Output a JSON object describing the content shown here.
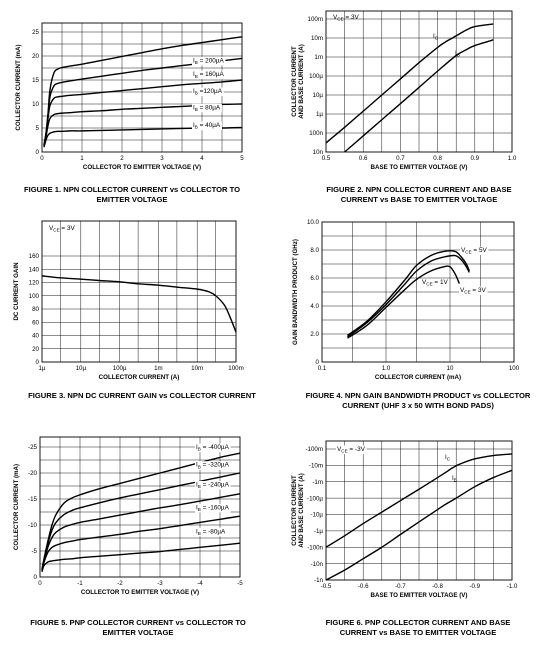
{
  "figures": [
    {
      "id": "fig1",
      "caption": [
        "FIGURE 1.  NPN COLLECTOR CURRENT vs COLLECTOR TO",
        "EMITTER VOLTAGE"
      ],
      "xlabel": "COLLECTOR TO EMITTER VOLTAGE (V)",
      "ylabel": "COLLECTOR CURRENT (mA)",
      "x_ticks": [
        "0",
        "1",
        "2",
        "3",
        "4",
        "5"
      ],
      "y_ticks": [
        "0",
        "5",
        "10",
        "15",
        "20",
        "25"
      ],
      "annotations": [],
      "curve_labels": [
        {
          "main": "I",
          "sub": "B",
          "rest": " = 200µA"
        },
        {
          "main": "I",
          "sub": "B",
          "rest": " = 160µA"
        },
        {
          "main": "I",
          "sub": "B",
          "rest": " =120µA"
        },
        {
          "main": "I",
          "sub": "B",
          "rest": " = 80µA"
        },
        {
          "main": "I",
          "sub": "B",
          "rest": " = 40µA"
        }
      ]
    },
    {
      "id": "fig2",
      "caption": [
        "FIGURE 2.  NPN COLLECTOR CURRENT AND BASE",
        "CURRENT vs BASE TO EMITTER VOLTAGE"
      ],
      "xlabel": "BASE TO EMITTER VOLTAGE (V)",
      "ylabel": [
        "COLLECTOR CURRENT",
        "AND BASE CURRENT (A)"
      ],
      "x_ticks": [
        "0.5",
        "0.6",
        "0.7",
        "0.8",
        "0.9",
        "1.0"
      ],
      "y_ticks": [
        "100m",
        "10m",
        "1m",
        "100µ",
        "10µ",
        "1µ",
        "100n",
        "10n"
      ],
      "annotations": [
        {
          "main": "V",
          "sub": "CE",
          "rest": " = 3V"
        }
      ],
      "curve_labels": [
        {
          "main": "I",
          "sub": "C",
          "rest": ""
        },
        {
          "main": "I",
          "sub": "B",
          "rest": ""
        }
      ]
    },
    {
      "id": "fig3",
      "caption": [
        "FIGURE 3.  NPN DC CURRENT GAIN vs COLLECTOR CURRENT"
      ],
      "xlabel": "COLLECTOR CURRENT (A)",
      "ylabel": "DC CURRENT GAIN",
      "x_ticks": [
        "1µ",
        "10µ",
        "100µ",
        "1m",
        "10m",
        "100m"
      ],
      "y_ticks": [
        "0",
        "20",
        "40",
        "60",
        "80",
        "100",
        "120",
        "140",
        "160"
      ],
      "annotations": [
        {
          "main": "V",
          "sub": "CE",
          "rest": " = 3V"
        }
      ],
      "curve_labels": []
    },
    {
      "id": "fig4",
      "caption": [
        "FIGURE 4.  NPN GAIN BANDWIDTH PRODUCT vs COLLECTOR",
        "CURRENT (UHF 3 x 50 WITH BOND PADS)"
      ],
      "xlabel": "COLLECTOR CURRENT (mA)",
      "ylabel": "GAIN BANDWIDTH PRODUCT (GHz)",
      "x_ticks": [
        "0.1",
        "1.0",
        "10",
        "100"
      ],
      "y_ticks": [
        "0",
        "2.0",
        "4.0",
        "6.0",
        "8.0",
        "10.0"
      ],
      "annotations": [],
      "curve_labels": [
        {
          "main": "V",
          "sub": "CE",
          "rest": " = 5V"
        },
        {
          "main": "V",
          "sub": "CE",
          "rest": " = 1V"
        },
        {
          "main": "V",
          "sub": "CE",
          "rest": " = 3V"
        }
      ]
    },
    {
      "id": "fig5",
      "caption": [
        "FIGURE 5.  PNP COLLECTOR CURRENT vs COLLECTOR TO",
        "EMITTER VOLTAGE"
      ],
      "xlabel": "COLLECTOR TO EMITTER VOLTAGE (V)",
      "ylabel": "COLLECTOR CURRENT (mA)",
      "x_ticks": [
        "0",
        "-1",
        "-2",
        "-3",
        "-4",
        "-5"
      ],
      "y_ticks": [
        "0",
        "-5",
        "-10",
        "-15",
        "-20",
        "-25"
      ],
      "annotations": [],
      "curve_labels": [
        {
          "main": "I",
          "sub": "B",
          "rest": " = -400µA"
        },
        {
          "main": "I",
          "sub": "B",
          "rest": " = -320µA"
        },
        {
          "main": "I",
          "sub": "B",
          "rest": " = -240µA"
        },
        {
          "main": "I",
          "sub": "B",
          "rest": " = -160µA"
        },
        {
          "main": "I",
          "sub": "B",
          "rest": " = -80µA"
        }
      ]
    },
    {
      "id": "fig6",
      "caption": [
        "FIGURE 6.  PNP COLLECTOR CURRENT AND BASE",
        "CURRENT vs BASE TO EMITTER VOLTAGE"
      ],
      "xlabel": "BASE TO EMITTER VOLTAGE (V)",
      "ylabel": [
        "COLLECTOR CURRENT",
        "AND BASE CURRENT (A)"
      ],
      "x_ticks": [
        "-0.5",
        "-0.6",
        "-0.7",
        "-0.8",
        "-0.9",
        "-1.0"
      ],
      "y_ticks": [
        "-100m",
        "-10m",
        "-1m",
        "-100µ",
        "-10µ",
        "-1µ",
        "-100n",
        "-10n",
        "-1n"
      ],
      "annotations": [
        {
          "main": "V",
          "sub": "CE",
          "rest": " = -3V"
        }
      ],
      "curve_labels": [
        {
          "main": "I",
          "sub": "C",
          "rest": ""
        },
        {
          "main": "I",
          "sub": "B",
          "rest": ""
        }
      ]
    }
  ],
  "chart_data": [
    {
      "type": "line",
      "title": "",
      "xlabel": "COLLECTOR TO EMITTER VOLTAGE (V)",
      "ylabel": "COLLECTOR CURRENT (mA)",
      "xlim": [
        0,
        5
      ],
      "ylim": [
        0,
        25
      ],
      "grid": true,
      "xscale": "linear",
      "yscale": "linear",
      "series": [
        {
          "name": "IB = 200µA",
          "x": [
            0.05,
            0.1,
            0.15,
            0.2,
            0.3,
            0.4,
            0.5,
            0.7,
            1,
            1.5,
            2,
            2.5,
            3,
            3.5,
            4,
            4.5,
            5
          ],
          "y": [
            1.5,
            4,
            8,
            13,
            16.5,
            17.3,
            17.6,
            17.9,
            18.3,
            19.1,
            19.9,
            20.7,
            21.5,
            22.2,
            22.8,
            23.4,
            24
          ]
        },
        {
          "name": "IB = 160µA",
          "x": [
            0.05,
            0.1,
            0.15,
            0.2,
            0.3,
            0.4,
            0.5,
            0.7,
            1,
            1.5,
            2,
            2.5,
            3,
            3.5,
            4,
            4.5,
            5
          ],
          "y": [
            1.4,
            3.8,
            7.5,
            11.5,
            13.8,
            14.3,
            14.5,
            14.8,
            15.2,
            15.8,
            16.4,
            17,
            17.5,
            18,
            18.5,
            19,
            19.5
          ]
        },
        {
          "name": "IB = 120µA",
          "x": [
            0.05,
            0.1,
            0.15,
            0.2,
            0.3,
            0.4,
            0.5,
            0.7,
            1,
            1.5,
            2,
            2.5,
            3,
            3.5,
            4,
            4.5,
            5
          ],
          "y": [
            1.3,
            3.5,
            7,
            9.7,
            11.2,
            11.5,
            11.6,
            11.8,
            12,
            12.4,
            12.8,
            13.2,
            13.6,
            14,
            14.3,
            14.6,
            15
          ]
        },
        {
          "name": "IB = 80µA",
          "x": [
            0.05,
            0.1,
            0.15,
            0.2,
            0.3,
            0.4,
            0.5,
            0.7,
            1,
            1.5,
            2,
            2.5,
            3,
            3.5,
            4,
            4.5,
            5
          ],
          "y": [
            1.2,
            3.2,
            5.5,
            7,
            7.8,
            8,
            8.1,
            8.2,
            8.4,
            8.6,
            8.9,
            9.1,
            9.3,
            9.5,
            9.7,
            9.9,
            10
          ]
        },
        {
          "name": "IB = 40µA",
          "x": [
            0.05,
            0.1,
            0.15,
            0.2,
            0.3,
            0.4,
            0.5,
            0.7,
            1,
            1.5,
            2,
            2.5,
            3,
            3.5,
            4,
            4.5,
            5
          ],
          "y": [
            1,
            2.5,
            3.5,
            3.9,
            4.2,
            4.3,
            4.3,
            4.4,
            4.4,
            4.5,
            4.6,
            4.7,
            4.8,
            4.9,
            5,
            5,
            5.1
          ]
        }
      ]
    },
    {
      "type": "line",
      "title": "",
      "xlabel": "BASE TO EMITTER VOLTAGE (V)",
      "ylabel": "COLLECTOR CURRENT AND BASE CURRENT (A)",
      "xlim": [
        0.5,
        1.0
      ],
      "ylim": [
        1e-08,
        0.1
      ],
      "grid": true,
      "xscale": "linear",
      "yscale": "log",
      "series": [
        {
          "name": "IC",
          "x": [
            0.5,
            0.55,
            0.6,
            0.65,
            0.7,
            0.75,
            0.8,
            0.82,
            0.84,
            0.86,
            0.88,
            0.9,
            0.95
          ],
          "y": [
            3e-08,
            2e-07,
            1.4e-06,
            1e-05,
            7e-05,
            0.0005,
            0.0032,
            0.006,
            0.01,
            0.017,
            0.028,
            0.04,
            0.055
          ]
        },
        {
          "name": "IB",
          "x": [
            0.55,
            0.6,
            0.65,
            0.7,
            0.75,
            0.8,
            0.85,
            0.88,
            0.9,
            0.95
          ],
          "y": [
            1e-08,
            7e-08,
            5e-07,
            3.5e-06,
            2.5e-05,
            0.00018,
            0.0012,
            0.0026,
            0.004,
            0.008
          ]
        }
      ]
    },
    {
      "type": "line",
      "title": "",
      "xlabel": "COLLECTOR CURRENT (A)",
      "ylabel": "DC CURRENT GAIN",
      "xlim": [
        1e-06,
        0.1
      ],
      "ylim": [
        0,
        180
      ],
      "grid": true,
      "xscale": "log",
      "yscale": "linear",
      "series": [
        {
          "name": "VCE = 3V",
          "x": [
            1e-06,
            3e-06,
            1e-05,
            3e-05,
            0.0001,
            0.0003,
            0.001,
            0.003,
            0.01,
            0.02,
            0.03,
            0.05,
            0.07,
            0.1
          ],
          "y": [
            130,
            127,
            125,
            123,
            121,
            118,
            116,
            113,
            110,
            106,
            100,
            86,
            68,
            45
          ]
        }
      ]
    },
    {
      "type": "line",
      "title": "",
      "xlabel": "COLLECTOR CURRENT (mA)",
      "ylabel": "GAIN BANDWIDTH PRODUCT (GHz)",
      "xlim": [
        0.1,
        100
      ],
      "ylim": [
        0,
        10
      ],
      "grid": true,
      "xscale": "log",
      "yscale": "linear",
      "series": [
        {
          "name": "VCE = 5V",
          "x": [
            0.25,
            0.5,
            1,
            2,
            3,
            5,
            8,
            12,
            15,
            18,
            20
          ],
          "y": [
            1.9,
            2.9,
            4.3,
            5.9,
            6.9,
            7.6,
            7.9,
            7.9,
            7.5,
            7.0,
            6.5
          ]
        },
        {
          "name": "VCE = 3V",
          "x": [
            0.25,
            0.5,
            1,
            2,
            3,
            5,
            8,
            12,
            15,
            18,
            20
          ],
          "y": [
            1.8,
            2.8,
            4.1,
            5.6,
            6.5,
            7.2,
            7.5,
            7.6,
            7.3,
            6.8,
            6.4
          ]
        },
        {
          "name": "VCE = 1V",
          "x": [
            0.25,
            0.5,
            1,
            2,
            3,
            5,
            8,
            10,
            12,
            14
          ],
          "y": [
            1.7,
            2.6,
            3.9,
            5.2,
            5.9,
            6.5,
            6.8,
            6.8,
            6.3,
            5.6
          ]
        }
      ]
    },
    {
      "type": "line",
      "title": "",
      "xlabel": "COLLECTOR TO EMITTER VOLTAGE (V)",
      "ylabel": "COLLECTOR CURRENT (mA)",
      "xlim": [
        0,
        -5
      ],
      "ylim": [
        0,
        -27
      ],
      "grid": true,
      "xscale": "linear",
      "yscale": "linear",
      "series": [
        {
          "name": "IB = -400µA",
          "x": [
            -0.05,
            -0.1,
            -0.2,
            -0.3,
            -0.4,
            -0.6,
            -0.8,
            -1,
            -1.5,
            -2,
            -2.5,
            -3,
            -3.5,
            -4,
            -4.5,
            -5
          ],
          "y": [
            -1.5,
            -3.5,
            -7,
            -10,
            -12,
            -14.2,
            -15.2,
            -15.8,
            -17,
            -18,
            -19,
            -20,
            -21,
            -22,
            -23,
            -23.8
          ]
        },
        {
          "name": "IB = -320µA",
          "x": [
            -0.05,
            -0.1,
            -0.2,
            -0.3,
            -0.4,
            -0.6,
            -0.8,
            -1,
            -1.5,
            -2,
            -2.5,
            -3,
            -3.5,
            -4,
            -4.5,
            -5
          ],
          "y": [
            -1.4,
            -3.2,
            -6.5,
            -9,
            -10.5,
            -12,
            -12.8,
            -13.3,
            -14.3,
            -15.2,
            -16,
            -16.8,
            -17.6,
            -18.4,
            -19.2,
            -20
          ]
        },
        {
          "name": "IB = -240µA",
          "x": [
            -0.05,
            -0.1,
            -0.2,
            -0.3,
            -0.4,
            -0.6,
            -0.8,
            -1,
            -1.5,
            -2,
            -2.5,
            -3,
            -3.5,
            -4,
            -4.5,
            -5
          ],
          "y": [
            -1.3,
            -3,
            -5.8,
            -7.6,
            -8.6,
            -9.6,
            -10.1,
            -10.5,
            -11.2,
            -11.9,
            -12.6,
            -13.3,
            -13.9,
            -14.6,
            -15.3,
            -16
          ]
        },
        {
          "name": "IB = -160µA",
          "x": [
            -0.05,
            -0.1,
            -0.2,
            -0.3,
            -0.4,
            -0.6,
            -0.8,
            -1,
            -1.5,
            -2,
            -2.5,
            -3,
            -3.5,
            -4,
            -4.5,
            -5
          ],
          "y": [
            -1.2,
            -2.8,
            -4.8,
            -5.7,
            -6.1,
            -6.6,
            -6.9,
            -7.2,
            -7.7,
            -8.2,
            -8.8,
            -9.3,
            -9.9,
            -10.5,
            -11.1,
            -11.7
          ]
        },
        {
          "name": "IB = -80µA",
          "x": [
            -0.05,
            -0.1,
            -0.2,
            -0.3,
            -0.4,
            -0.6,
            -0.8,
            -1,
            -1.5,
            -2,
            -2.5,
            -3,
            -3.5,
            -4,
            -4.5,
            -5
          ],
          "y": [
            -1.0,
            -2.2,
            -2.9,
            -3.1,
            -3.2,
            -3.4,
            -3.5,
            -3.7,
            -4,
            -4.3,
            -4.6,
            -4.9,
            -5.3,
            -5.7,
            -6.1,
            -6.5
          ]
        }
      ]
    },
    {
      "type": "line",
      "title": "",
      "xlabel": "BASE TO EMITTER VOLTAGE (V)",
      "ylabel": "COLLECTOR CURRENT AND BASE CURRENT (A)",
      "xlim": [
        -0.5,
        -1.0
      ],
      "ylim": [
        -1e-09,
        -0.1
      ],
      "grid": true,
      "xscale": "linear",
      "yscale": "log",
      "series": [
        {
          "name": "IC",
          "x": [
            -0.5,
            -0.55,
            -0.6,
            -0.65,
            -0.7,
            -0.75,
            -0.8,
            -0.82,
            -0.84,
            -0.86,
            -0.9,
            -0.95,
            -1.0
          ],
          "y": [
            -1e-07,
            -5e-07,
            -2.8e-06,
            -1.4e-05,
            -7e-05,
            -0.00035,
            -0.0018,
            -0.0035,
            -0.007,
            -0.012,
            -0.025,
            -0.04,
            -0.05
          ]
        },
        {
          "name": "IB",
          "x": [
            -0.5,
            -0.55,
            -0.6,
            -0.65,
            -0.7,
            -0.75,
            -0.8,
            -0.82,
            -0.85,
            -0.9,
            -0.95,
            -1.0
          ],
          "y": [
            -1e-09,
            -4e-09,
            -2e-08,
            -1e-07,
            -6e-07,
            -3.5e-06,
            -2e-05,
            -4e-05,
            -0.0001,
            -0.0005,
            -0.0018,
            -0.005
          ]
        }
      ]
    }
  ]
}
